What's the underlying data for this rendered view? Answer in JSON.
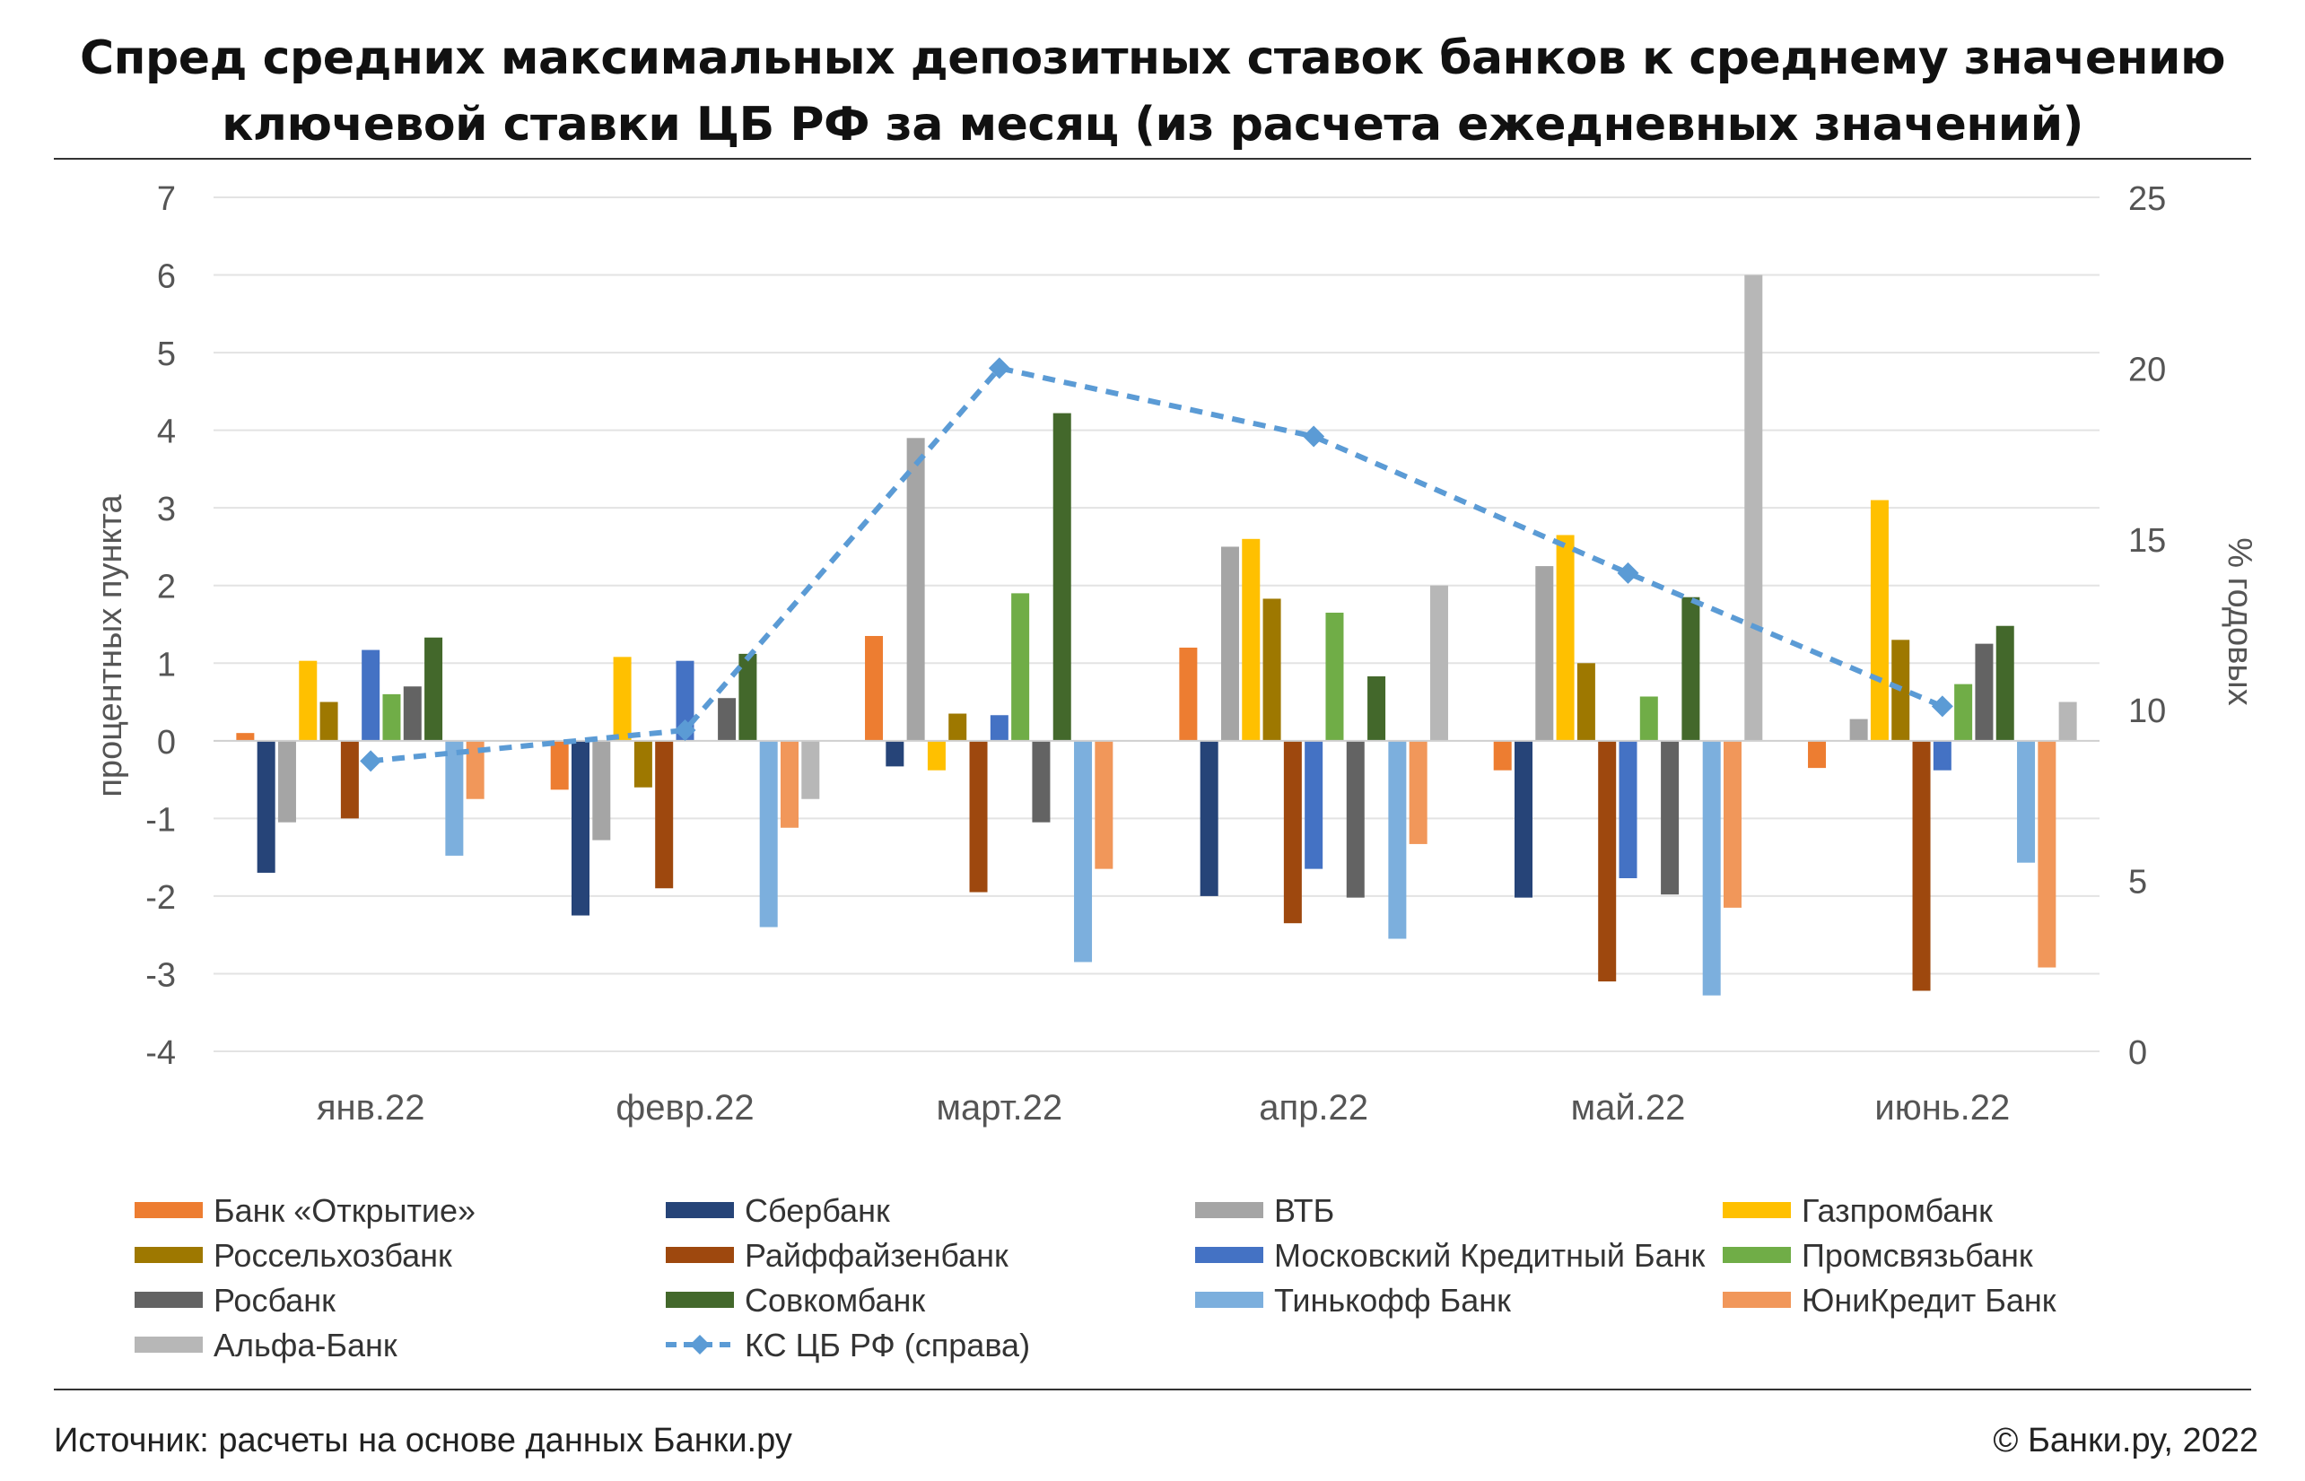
{
  "title_lines": [
    "Спред средних максимальных депозитных ставок банков к среднему значению",
    "ключевой ставки ЦБ РФ за месяц (из расчета ежедневных значений)"
  ],
  "footer": {
    "source": "Источник: расчеты на основе данных Банки.ру",
    "copyright": "© Банки.ру, 2022"
  },
  "chart_data": {
    "type": "bar",
    "categories": [
      "янв.22",
      "февр.22",
      "март.22",
      "апр.22",
      "май.22",
      "июнь.22"
    ],
    "ylabel": "процентных пункта",
    "y2label": "% годовых",
    "ylim": [
      -4,
      7
    ],
    "y_ticks": [
      "7",
      "6",
      "5",
      "4",
      "3",
      "2",
      "1",
      "0",
      "-1",
      "-2",
      "-3",
      "-4"
    ],
    "y2lim": [
      0,
      25
    ],
    "y2_ticks": [
      "25",
      "20",
      "15",
      "10",
      "5",
      "0"
    ],
    "grid": true,
    "legend_position": "bottom",
    "series": [
      {
        "name": "Банк «Открытие»",
        "color": "#ED7D31",
        "values": [
          0.1,
          -0.63,
          1.35,
          1.2,
          -0.38,
          -0.35
        ]
      },
      {
        "name": "Сбербанк",
        "color": "#264478",
        "values": [
          -1.7,
          -2.25,
          -0.33,
          -2.0,
          -2.02,
          null
        ]
      },
      {
        "name": "ВТБ",
        "color": "#A5A5A5",
        "values": [
          -1.05,
          -1.28,
          3.9,
          2.5,
          2.25,
          0.28
        ]
      },
      {
        "name": "Газпромбанк",
        "color": "#FFC000",
        "values": [
          1.03,
          1.08,
          -0.38,
          2.6,
          2.65,
          3.1
        ]
      },
      {
        "name": "Россельхозбанк",
        "color": "#9E7800",
        "values": [
          0.5,
          -0.6,
          0.35,
          1.83,
          1.0,
          1.3
        ]
      },
      {
        "name": "Райффайзенбанк",
        "color": "#9E480E",
        "values": [
          -1.0,
          -1.9,
          -1.95,
          -2.35,
          -3.1,
          -3.22
        ]
      },
      {
        "name": "Московский Кредитный Банк",
        "color": "#4472C4",
        "values": [
          1.17,
          1.03,
          0.33,
          -1.65,
          -1.77,
          -0.38
        ]
      },
      {
        "name": "Промсвязьбанк",
        "color": "#70AD47",
        "values": [
          0.6,
          null,
          1.9,
          1.65,
          0.57,
          0.73
        ]
      },
      {
        "name": "Росбанк",
        "color": "#636363",
        "values": [
          0.7,
          0.55,
          -1.05,
          -2.02,
          -1.98,
          1.25
        ]
      },
      {
        "name": "Совкомбанк",
        "color": "#43682B",
        "values": [
          1.33,
          1.12,
          4.22,
          0.83,
          1.85,
          1.48
        ]
      },
      {
        "name": "Тинькофф Банк",
        "color": "#7CAFDD",
        "values": [
          -1.48,
          -2.4,
          -2.85,
          -2.55,
          -3.28,
          -1.57
        ]
      },
      {
        "name": "ЮниКредит Банк",
        "color": "#F1975A",
        "values": [
          -0.75,
          -1.12,
          -1.65,
          -1.33,
          -2.15,
          -2.92
        ]
      },
      {
        "name": "Альфа-Банк",
        "color": "#B7B7B7",
        "values": [
          null,
          -0.75,
          null,
          2.0,
          6.0,
          0.5
        ]
      }
    ],
    "line_series": {
      "name": "КС ЦБ РФ (справа)",
      "color": "#5B9BD5",
      "axis": "right",
      "values": [
        8.5,
        9.4,
        20.0,
        18.0,
        14.0,
        10.1
      ]
    }
  }
}
